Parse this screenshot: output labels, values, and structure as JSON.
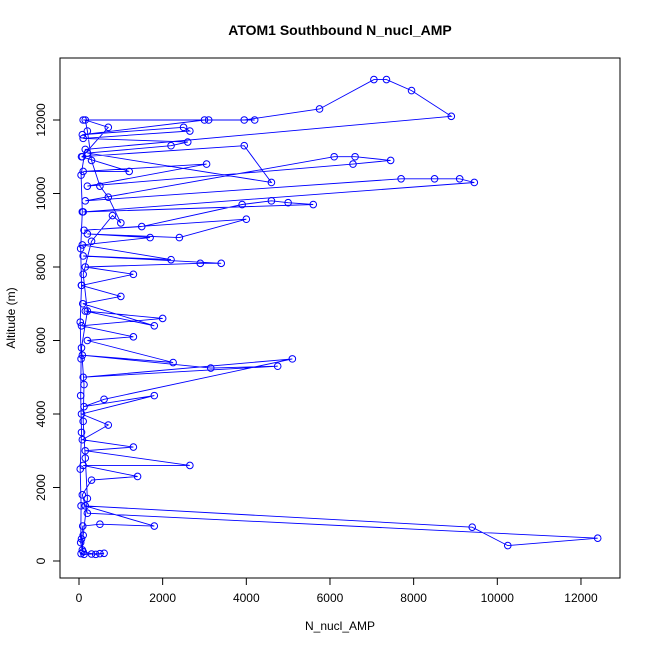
{
  "chart_data": {
    "type": "line",
    "title": "ATOM1 Southbound N_nucl_AMP",
    "xlabel": "N_nucl_AMP",
    "ylabel": "Altitude (m)",
    "color": "#0000ff",
    "x": [
      50,
      120,
      300,
      500,
      600,
      400,
      100,
      60,
      90,
      500,
      1800,
      150,
      9400,
      10250,
      12400,
      200,
      80,
      300,
      1400,
      100,
      2650,
      150,
      1300,
      80,
      700,
      60,
      1800,
      120,
      600,
      5100,
      100,
      4750,
      3150,
      80,
      2250,
      200,
      1300,
      60,
      2000,
      150,
      1800,
      90,
      1000,
      60,
      1300,
      150,
      2900,
      3400,
      100,
      2200,
      80,
      1700,
      200,
      2400,
      4000,
      120,
      1500,
      3900,
      4600,
      5000,
      5600,
      100,
      9450,
      9100,
      8500,
      7700,
      150,
      6100,
      6600,
      7450,
      6550,
      200,
      3050,
      100,
      1200,
      60,
      3950,
      4600,
      200,
      2200,
      2600,
      100,
      2650,
      2500,
      80,
      3000,
      3100,
      100,
      4200,
      3950,
      5750,
      7050,
      7350,
      7950,
      8900,
      150,
      50,
      80,
      40,
      60,
      30,
      50,
      40,
      60,
      30,
      50,
      40,
      80,
      100,
      200,
      150,
      100,
      120,
      60,
      200,
      100,
      300,
      800,
      1000,
      700,
      500,
      300,
      200,
      150,
      700,
      80
    ],
    "y": [
      200,
      180,
      190,
      200,
      210,
      180,
      250,
      600,
      950,
      1000,
      950,
      1500,
      920,
      420,
      620,
      1300,
      1800,
      2200,
      2300,
      2600,
      2600,
      3000,
      3100,
      3300,
      3700,
      4000,
      4500,
      4200,
      4400,
      5500,
      5000,
      5300,
      5250,
      5600,
      5400,
      6000,
      6100,
      6400,
      6600,
      6800,
      6400,
      7000,
      7200,
      7500,
      7800,
      8000,
      8100,
      8100,
      8300,
      8200,
      8600,
      8800,
      8900,
      8800,
      9300,
      9000,
      9100,
      9700,
      9800,
      9750,
      9700,
      9500,
      10300,
      10400,
      10400,
      10400,
      9800,
      11000,
      11000,
      10900,
      10800,
      10200,
      10800,
      10600,
      10600,
      11000,
      11300,
      10300,
      11100,
      11300,
      11400,
      11500,
      11700,
      11800,
      11600,
      12000,
      12000,
      12000,
      12000,
      12000,
      12300,
      13100,
      13100,
      12800,
      12100,
      11200,
      10500,
      9500,
      8500,
      7500,
      6500,
      5500,
      4500,
      3500,
      2500,
      1500,
      500,
      300,
      700,
      1700,
      2800,
      3800,
      4800,
      5800,
      6800,
      7800,
      8700,
      9400,
      9200,
      9900,
      10200,
      10900,
      11700,
      12000,
      11800,
      11000
    ],
    "xlim": [
      -454,
      12933
    ],
    "ylim": [
      -463,
      13687
    ],
    "xticks": [
      0,
      2000,
      4000,
      6000,
      8000,
      10000,
      12000
    ],
    "yticks": [
      0,
      2000,
      4000,
      6000,
      8000,
      10000,
      12000
    ]
  }
}
